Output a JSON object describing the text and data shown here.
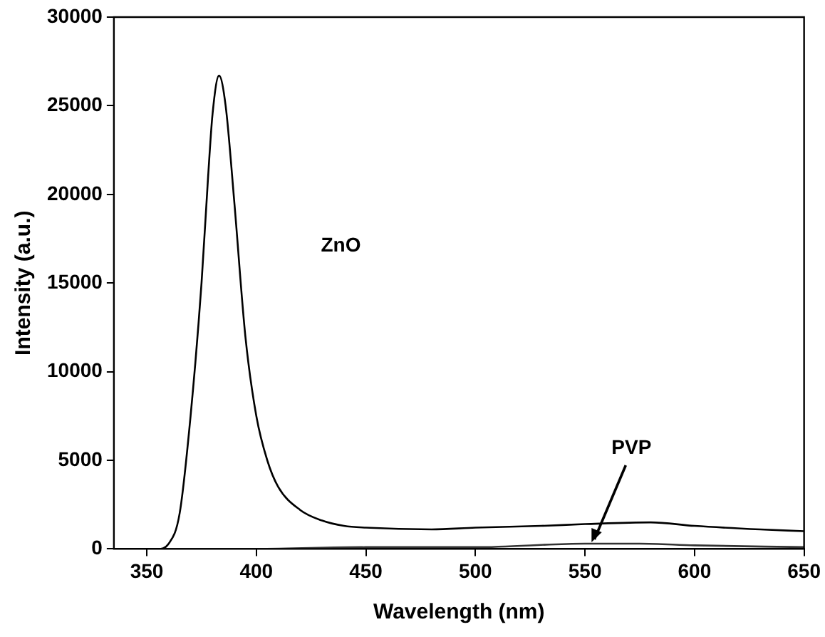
{
  "chart_data": {
    "type": "line",
    "xlabel": "Wavelength (nm)",
    "ylabel": "Intensity (a.u.)",
    "xlim": [
      335,
      650
    ],
    "xticks": [
      350,
      400,
      450,
      500,
      550,
      600,
      650
    ],
    "ylim": [
      0,
      30000
    ],
    "yticks": [
      0,
      5000,
      10000,
      15000,
      20000,
      25000,
      30000
    ],
    "grid": false,
    "legend": false,
    "marker": "none",
    "line_style": "solid",
    "series": [
      {
        "color": "#000000",
        "x": [
          340,
          350,
          355,
          360,
          365,
          370,
          375,
          378,
          380,
          383,
          386,
          390,
          395,
          400,
          405,
          410,
          420,
          430,
          440,
          450,
          480,
          500,
          530,
          550,
          580,
          600,
          630,
          650
        ],
        "values": [
          0,
          0,
          0,
          300,
          2000,
          7500,
          15000,
          21000,
          24500,
          26700,
          25000,
          19500,
          12000,
          7500,
          5000,
          3500,
          2200,
          1600,
          1300,
          1200,
          1100,
          1200,
          1300,
          1400,
          1500,
          1300,
          1100,
          1000
        ]
      },
      {
        "color": "#333333",
        "x": [
          340,
          400,
          450,
          500,
          550,
          575,
          600,
          650
        ],
        "values": [
          0,
          0,
          100,
          100,
          300,
          300,
          200,
          100
        ]
      }
    ],
    "annotations": [
      "ZnO",
      {
        "text": "PVP",
        "x": 553,
        "y": 300
      }
    ]
  }
}
